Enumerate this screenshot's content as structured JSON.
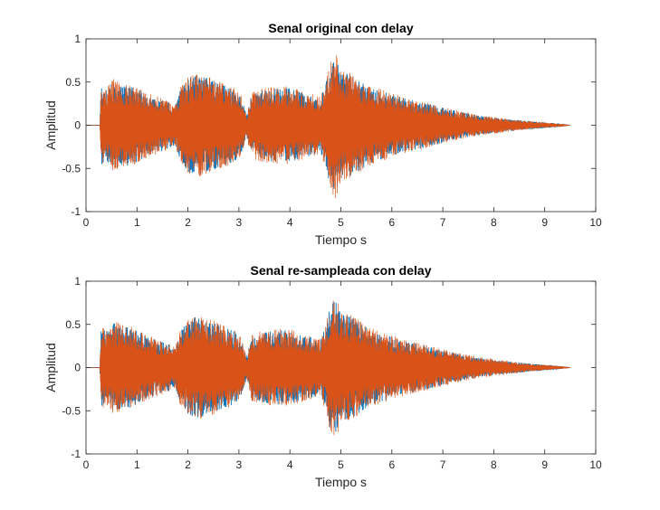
{
  "chart_data": [
    {
      "type": "line",
      "title": "Senal original con delay",
      "xlabel": "Tiempo s",
      "ylabel": "Amplitud",
      "xlim": [
        0,
        10
      ],
      "ylim": [
        -1,
        1
      ],
      "xticks": [
        "0",
        "1",
        "2",
        "3",
        "4",
        "5",
        "6",
        "7",
        "8",
        "9",
        "10"
      ],
      "yticks": [
        "-1",
        "-0.5",
        "0",
        "0.5",
        "1"
      ],
      "grid": false,
      "delay_s": 0.27,
      "end_s": 9.5,
      "series": [
        {
          "color": "#0072BD",
          "envelope": {
            "t": [
              0,
              0.27,
              0.3,
              0.4,
              0.55,
              0.7,
              0.85,
              1.0,
              1.2,
              1.4,
              1.6,
              1.75,
              1.85,
              2.0,
              2.15,
              2.35,
              2.5,
              2.7,
              2.9,
              3.05,
              3.15,
              3.25,
              3.45,
              3.7,
              3.95,
              4.2,
              4.4,
              4.6,
              4.7,
              4.8,
              4.9,
              5.0,
              5.2,
              5.4,
              5.6,
              5.8,
              6.0,
              6.3,
              6.6,
              7.0,
              7.4,
              7.8,
              8.2,
              8.6,
              9.0,
              9.3,
              9.5
            ],
            "amp": [
              0,
              0,
              0.46,
              0.4,
              0.51,
              0.47,
              0.46,
              0.42,
              0.35,
              0.31,
              0.27,
              0.22,
              0.41,
              0.53,
              0.58,
              0.55,
              0.52,
              0.46,
              0.42,
              0.33,
              0.12,
              0.36,
              0.4,
              0.42,
              0.43,
              0.38,
              0.35,
              0.3,
              0.48,
              0.72,
              0.77,
              0.61,
              0.58,
              0.51,
              0.43,
              0.39,
              0.35,
              0.3,
              0.26,
              0.2,
              0.14,
              0.1,
              0.07,
              0.05,
              0.03,
              0.015,
              0
            ]
          }
        },
        {
          "color": "#D95319",
          "envelope": {
            "t": [
              0,
              0.27,
              0.3,
              0.4,
              0.55,
              0.7,
              0.85,
              1.0,
              1.2,
              1.4,
              1.6,
              1.75,
              1.85,
              2.0,
              2.15,
              2.35,
              2.5,
              2.7,
              2.9,
              3.05,
              3.15,
              3.25,
              3.45,
              3.7,
              3.95,
              4.2,
              4.4,
              4.6,
              4.7,
              4.8,
              4.9,
              5.0,
              5.2,
              5.4,
              5.6,
              5.8,
              6.0,
              6.3,
              6.6,
              7.0,
              7.4,
              7.8,
              8.2,
              8.6,
              9.0,
              9.3,
              9.5
            ],
            "amp": [
              0,
              0,
              0.48,
              0.42,
              0.54,
              0.49,
              0.48,
              0.44,
              0.37,
              0.33,
              0.28,
              0.23,
              0.43,
              0.55,
              0.6,
              0.57,
              0.54,
              0.48,
              0.44,
              0.34,
              0.13,
              0.38,
              0.42,
              0.44,
              0.45,
              0.4,
              0.37,
              0.32,
              0.5,
              0.75,
              0.85,
              0.63,
              0.6,
              0.53,
              0.45,
              0.41,
              0.37,
              0.31,
              0.27,
              0.21,
              0.15,
              0.11,
              0.08,
              0.05,
              0.03,
              0.015,
              0
            ]
          }
        }
      ]
    },
    {
      "type": "line",
      "title": "Senal re-sampleada con delay",
      "xlabel": "Tiempo s",
      "ylabel": "Amplitud",
      "xlim": [
        0,
        10
      ],
      "ylim": [
        -1,
        1
      ],
      "xticks": [
        "0",
        "1",
        "2",
        "3",
        "4",
        "5",
        "6",
        "7",
        "8",
        "9",
        "10"
      ],
      "yticks": [
        "-1",
        "-0.5",
        "0",
        "0.5",
        "1"
      ],
      "grid": false,
      "delay_s": 0.27,
      "end_s": 9.5,
      "series": [
        {
          "color": "#0072BD",
          "envelope": {
            "t": [
              0,
              0.27,
              0.3,
              0.4,
              0.55,
              0.7,
              0.85,
              1.0,
              1.2,
              1.4,
              1.6,
              1.75,
              1.85,
              2.0,
              2.15,
              2.35,
              2.5,
              2.7,
              2.9,
              3.05,
              3.15,
              3.25,
              3.45,
              3.7,
              3.95,
              4.2,
              4.4,
              4.6,
              4.7,
              4.8,
              4.9,
              5.0,
              5.2,
              5.4,
              5.6,
              5.8,
              6.0,
              6.3,
              6.6,
              7.0,
              7.4,
              7.8,
              8.2,
              8.6,
              9.0,
              9.3,
              9.5
            ],
            "amp": [
              0,
              0,
              0.46,
              0.4,
              0.51,
              0.47,
              0.46,
              0.42,
              0.35,
              0.31,
              0.27,
              0.22,
              0.41,
              0.53,
              0.58,
              0.55,
              0.52,
              0.46,
              0.42,
              0.33,
              0.12,
              0.36,
              0.4,
              0.42,
              0.43,
              0.38,
              0.35,
              0.3,
              0.48,
              0.72,
              0.77,
              0.61,
              0.58,
              0.51,
              0.43,
              0.39,
              0.35,
              0.3,
              0.26,
              0.2,
              0.14,
              0.1,
              0.07,
              0.05,
              0.03,
              0.015,
              0
            ]
          }
        },
        {
          "color": "#D95319",
          "envelope": {
            "t": [
              0,
              0.27,
              0.3,
              0.4,
              0.55,
              0.7,
              0.85,
              1.0,
              1.2,
              1.4,
              1.6,
              1.75,
              1.85,
              2.0,
              2.15,
              2.35,
              2.5,
              2.7,
              2.9,
              3.05,
              3.15,
              3.25,
              3.45,
              3.7,
              3.95,
              4.2,
              4.4,
              4.6,
              4.7,
              4.8,
              4.9,
              5.0,
              5.2,
              5.4,
              5.6,
              5.8,
              6.0,
              6.3,
              6.6,
              7.0,
              7.4,
              7.8,
              8.2,
              8.6,
              9.0,
              9.3,
              9.5
            ],
            "amp": [
              0,
              0,
              0.48,
              0.42,
              0.54,
              0.49,
              0.48,
              0.44,
              0.37,
              0.33,
              0.28,
              0.23,
              0.43,
              0.55,
              0.6,
              0.57,
              0.54,
              0.48,
              0.44,
              0.34,
              0.13,
              0.38,
              0.42,
              0.44,
              0.45,
              0.4,
              0.37,
              0.32,
              0.5,
              0.75,
              0.85,
              0.63,
              0.6,
              0.53,
              0.45,
              0.41,
              0.37,
              0.31,
              0.27,
              0.21,
              0.15,
              0.11,
              0.08,
              0.05,
              0.03,
              0.015,
              0
            ]
          }
        }
      ]
    }
  ]
}
